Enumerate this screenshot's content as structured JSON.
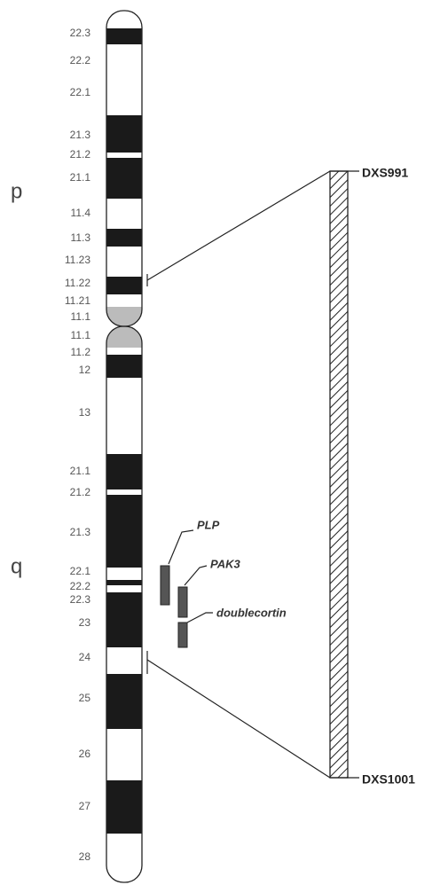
{
  "arms": {
    "p": "p",
    "q": "q"
  },
  "bands": [
    "22.3",
    "22.2",
    "22.1",
    "21.3",
    "21.2",
    "21.1",
    "11.4",
    "11.3",
    "11.23",
    "11.22",
    "11.21",
    "11.1",
    "11.1",
    "11.2",
    "12",
    "13",
    "21.1",
    "21.2",
    "21.3",
    "22.1",
    "22.2",
    "22.3",
    "23",
    "24",
    "25",
    "26",
    "27",
    "28"
  ],
  "markers": [
    "DXS991",
    "DXS1001"
  ],
  "genes": [
    "PLP",
    "PAK3",
    "doublecortin"
  ]
}
